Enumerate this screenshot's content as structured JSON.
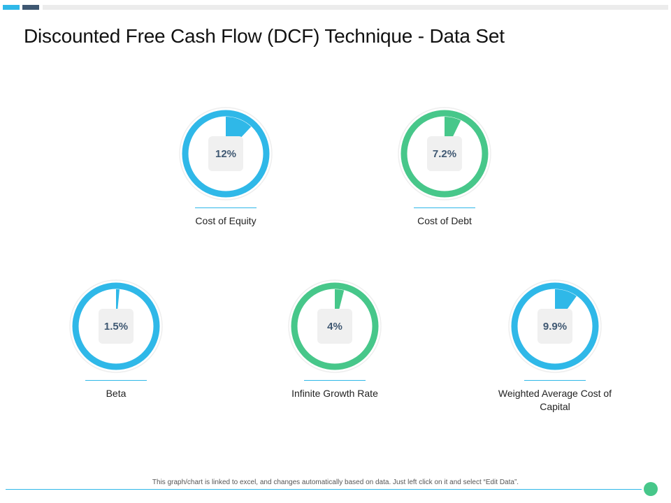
{
  "title": "Discounted Free Cash Flow (DCF) Technique - Data Set",
  "footer_note": "This graph/chart is linked to excel, and changes automatically based on data. Just left click on it and select “Edit Data”.",
  "colors": {
    "blue": "#2fb8e8",
    "green": "#47c78a",
    "navy": "#3f5872"
  },
  "chart_data": [
    {
      "type": "pie",
      "label": "Cost of Equity",
      "display": "12%",
      "value": 12,
      "color": "#2fb8e8"
    },
    {
      "type": "pie",
      "label": "Cost of Debt",
      "display": "7.2%",
      "value": 7.2,
      "color": "#47c78a"
    },
    {
      "type": "pie",
      "label": "Beta",
      "display": "1.5%",
      "value": 1.5,
      "color": "#2fb8e8"
    },
    {
      "type": "pie",
      "label": "Infinite Growth Rate",
      "display": "4%",
      "value": 4,
      "color": "#47c78a"
    },
    {
      "type": "pie",
      "label": "Weighted Average Cost of Capital",
      "display": "9.9%",
      "value": 9.9,
      "color": "#2fb8e8"
    }
  ]
}
